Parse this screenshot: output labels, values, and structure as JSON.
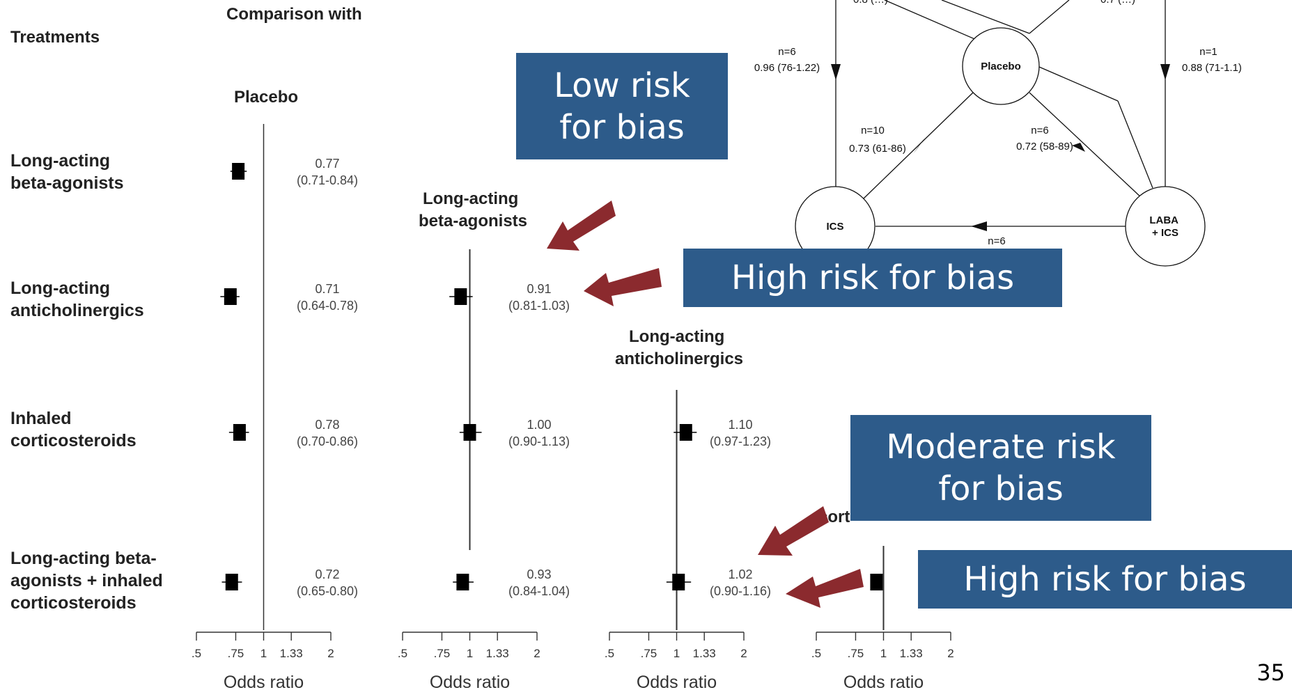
{
  "header": {
    "comparison": "Comparison with",
    "treatments": "Treatments"
  },
  "treatments": [
    [
      "Long-acting",
      "beta-agonists"
    ],
    [
      "Long-acting",
      "anticholinergics"
    ],
    [
      "Inhaled",
      "corticosteroids"
    ],
    [
      "Long-acting beta-",
      "agonists + inhaled",
      "corticosteroids"
    ]
  ],
  "axis": {
    "ticks": [
      ".5",
      ".75",
      "1",
      "1.33",
      "2"
    ],
    "xlabel": "Odds ratio"
  },
  "chart_data": [
    {
      "type": "forest",
      "title": "Placebo",
      "xlabel": "Odds ratio",
      "xscale": "log",
      "xlim": [
        0.5,
        2
      ],
      "rows": [
        {
          "treatment": "Long-acting beta-agonists",
          "or": 0.77,
          "ci_lower": 0.71,
          "ci_upper": 0.84,
          "or_label": "0.77",
          "ci_label": "(0.71-0.84)"
        },
        {
          "treatment": "Long-acting anticholinergics",
          "or": 0.71,
          "ci_lower": 0.64,
          "ci_upper": 0.78,
          "or_label": "0.71",
          "ci_label": "(0.64-0.78)"
        },
        {
          "treatment": "Inhaled corticosteroids",
          "or": 0.78,
          "ci_lower": 0.7,
          "ci_upper": 0.86,
          "or_label": "0.78",
          "ci_label": "(0.70-0.86)"
        },
        {
          "treatment": "Long-acting beta-agonists + inhaled corticosteroids",
          "or": 0.72,
          "ci_lower": 0.65,
          "ci_upper": 0.8,
          "or_label": "0.72",
          "ci_label": "(0.65-0.80)"
        }
      ]
    },
    {
      "type": "forest",
      "title": "Long-acting beta-agonists",
      "xlabel": "Odds ratio",
      "xscale": "log",
      "xlim": [
        0.5,
        2
      ],
      "rows": [
        {
          "treatment": "Long-acting anticholinergics",
          "or": 0.91,
          "ci_lower": 0.81,
          "ci_upper": 1.03,
          "or_label": "0.91",
          "ci_label": "(0.81-1.03)"
        },
        {
          "treatment": "Inhaled corticosteroids",
          "or": 1.0,
          "ci_lower": 0.9,
          "ci_upper": 1.13,
          "or_label": "1.00",
          "ci_label": "(0.90-1.13)"
        },
        {
          "treatment": "Long-acting beta-agonists + inhaled corticosteroids",
          "or": 0.93,
          "ci_lower": 0.84,
          "ci_upper": 1.04,
          "or_label": "0.93",
          "ci_label": "(0.84-1.04)"
        }
      ]
    },
    {
      "type": "forest",
      "title": "Long-acting anticholinergics",
      "xlabel": "Odds ratio",
      "xscale": "log",
      "xlim": [
        0.5,
        2
      ],
      "rows": [
        {
          "treatment": "Inhaled corticosteroids",
          "or": 1.1,
          "ci_lower": 0.97,
          "ci_upper": 1.23,
          "or_label": "1.10",
          "ci_label": "(0.97-1.23)"
        },
        {
          "treatment": "Long-acting beta-agonists + inhaled corticosteroids",
          "or": 1.02,
          "ci_lower": 0.9,
          "ci_upper": 1.16,
          "or_label": "1.02",
          "ci_label": "(0.90-1.16)"
        }
      ]
    },
    {
      "type": "forest",
      "title": "cort",
      "xlabel": "Odds ratio",
      "xscale": "log",
      "xlim": [
        0.5,
        2
      ],
      "rows": [
        {
          "treatment": "Long-acting beta-agonists + inhaled corticosteroids",
          "or": 0.93,
          "ci_lower": 0.88,
          "ci_upper": 0.98
        }
      ]
    }
  ],
  "network": {
    "nodes": {
      "placebo": "Placebo",
      "ics": "ICS",
      "laba_ics": [
        "LABA",
        "+ ICS"
      ]
    },
    "edges": {
      "top_left": "0.8 (…)",
      "top_right": "0.7 (…)",
      "left_n": "n=6",
      "left_or": "0.96 (76-1.22)",
      "right_n": "n=1",
      "right_or": "0.88 (71-1.1)",
      "ics_placebo_n": "n=10",
      "ics_placebo_or": "0.73 (61-86)",
      "laba_placebo_n": "n=6",
      "laba_placebo_or": "0.72 (58-89)",
      "laba_ics_n": "n=6"
    }
  },
  "callouts": {
    "low_risk": [
      "Low risk",
      "for bias"
    ],
    "high_risk_1": "High risk for bias",
    "moderate_risk": [
      "Moderate risk",
      "for bias"
    ],
    "high_risk_2": "High risk for bias"
  },
  "colors": {
    "box": "#2d5b8a",
    "arrow": "#8b2a2e",
    "text": "#000000"
  },
  "page_number": "35"
}
